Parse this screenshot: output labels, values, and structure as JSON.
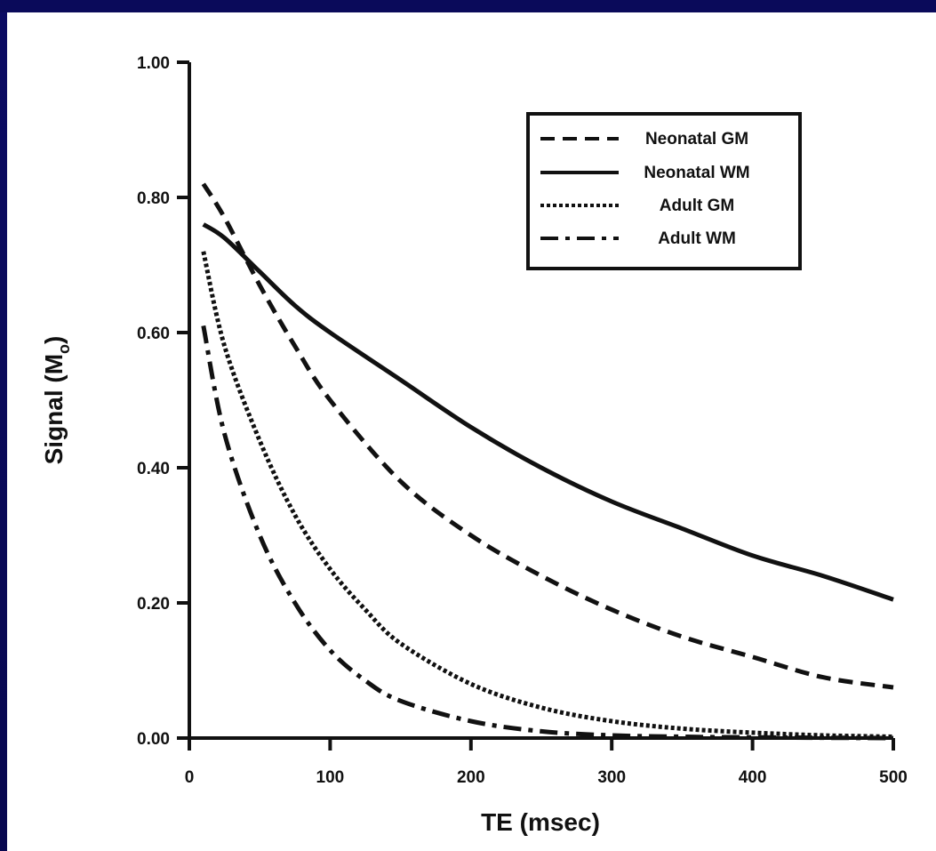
{
  "chart_data": {
    "type": "line",
    "xlabel": "TE (msec)",
    "ylabel": "Signal (M",
    "ylabel_sub": "o",
    "ylabel_close": ")",
    "xlim": [
      0,
      500
    ],
    "ylim": [
      0,
      1.0
    ],
    "x_ticks": [
      "0",
      "100",
      "200",
      "300",
      "400",
      "500"
    ],
    "x_tick_values": [
      0,
      100,
      200,
      300,
      400,
      500
    ],
    "y_ticks": [
      "0.00",
      "0.20",
      "0.40",
      "0.60",
      "0.80",
      "1.00"
    ],
    "y_tick_values": [
      0,
      0.2,
      0.4,
      0.6,
      0.8,
      1.0
    ],
    "grid": false,
    "legend_position": "top-right",
    "series": [
      {
        "name": "Neonatal GM",
        "style": "dashed",
        "x": [
          10,
          25,
          50,
          75,
          100,
          150,
          200,
          250,
          300,
          350,
          400,
          450,
          500
        ],
        "y": [
          0.82,
          0.77,
          0.67,
          0.58,
          0.5,
          0.38,
          0.3,
          0.24,
          0.19,
          0.15,
          0.12,
          0.09,
          0.075
        ]
      },
      {
        "name": "Neonatal WM",
        "style": "solid",
        "x": [
          10,
          25,
          50,
          75,
          100,
          150,
          200,
          250,
          300,
          350,
          400,
          450,
          500
        ],
        "y": [
          0.76,
          0.74,
          0.69,
          0.64,
          0.6,
          0.53,
          0.46,
          0.4,
          0.35,
          0.31,
          0.27,
          0.24,
          0.205
        ]
      },
      {
        "name": "Adult GM",
        "style": "dotted",
        "x": [
          10,
          25,
          50,
          75,
          100,
          125,
          150,
          200,
          250,
          300,
          350,
          400,
          450,
          500
        ],
        "y": [
          0.72,
          0.58,
          0.44,
          0.33,
          0.25,
          0.19,
          0.14,
          0.08,
          0.045,
          0.025,
          0.014,
          0.008,
          0.004,
          0.002
        ]
      },
      {
        "name": "Adult WM",
        "style": "dashdot",
        "x": [
          10,
          25,
          50,
          75,
          100,
          125,
          150,
          200,
          250,
          300,
          350,
          400,
          500
        ],
        "y": [
          0.61,
          0.45,
          0.3,
          0.2,
          0.13,
          0.085,
          0.055,
          0.025,
          0.01,
          0.004,
          0.002,
          0.001,
          0.0
        ]
      }
    ]
  }
}
